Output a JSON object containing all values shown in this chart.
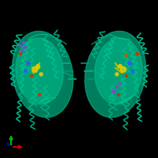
{
  "background_color": "#000000",
  "fig_width": 2.0,
  "fig_height": 2.0,
  "dpi": 100,
  "protein_color": "#00b386",
  "protein_color2": "#00c896",
  "protein_color3": "#009970",
  "ligand_colors": [
    "#ffcc00",
    "#4466ff",
    "#ff4400",
    "#aa44ff",
    "#ff8800"
  ],
  "axis_x_color": "#cc0000",
  "axis_y_color": "#00bb00",
  "axis_z_color": "#0000cc"
}
